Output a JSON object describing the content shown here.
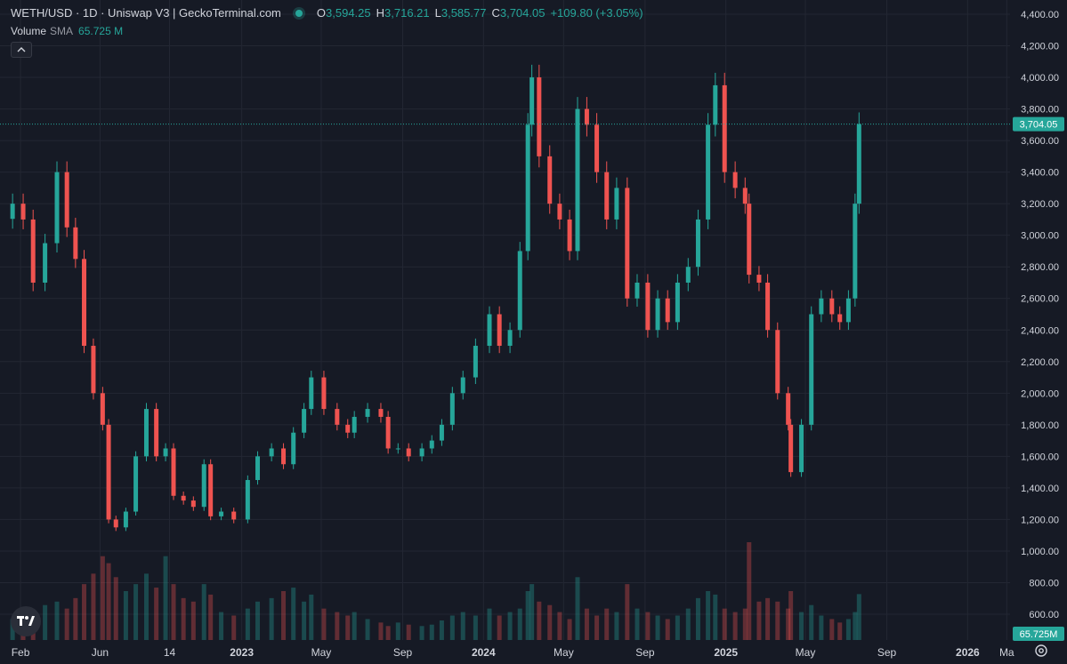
{
  "header": {
    "title": "WETH/USD · 1D · Uniswap V3 | GeckoTerminal.com",
    "ohlc": [
      {
        "key": "O",
        "value": "3,594.25"
      },
      {
        "key": "H",
        "value": "3,716.21"
      },
      {
        "key": "L",
        "value": "3,585.77"
      },
      {
        "key": "C",
        "value": "3,704.05"
      }
    ],
    "change": "+109.80 (+3.05%)"
  },
  "volume_legend": {
    "label": "Volume",
    "sub": "SMA",
    "value": "65.725 M"
  },
  "colors": {
    "background": "#161a25",
    "grid": "#232733",
    "up": "#26a69a",
    "down": "#ef5350",
    "text": "#d1d4dc",
    "muted": "#9598a1"
  },
  "icons": {
    "collapse": "chevron-up-icon",
    "logo": "tradingview-logo-icon",
    "settings": "gear-icon"
  },
  "chart_data": {
    "type": "candlestick",
    "title": "WETH/USD · 1D · Uniswap V3 | GeckoTerminal.com",
    "ylim": [
      500,
      4450
    ],
    "y_ticks": [
      600,
      800,
      1000,
      1200,
      1400,
      1600,
      1800,
      2000,
      2200,
      2400,
      2600,
      2800,
      3000,
      3200,
      3400,
      3600,
      3800,
      4000,
      4200,
      4400
    ],
    "y_tick_labels": [
      "600.00",
      "800.00",
      "1,000.00",
      "1,200.00",
      "1,400.00",
      "1,600.00",
      "1,800.00",
      "2,000.00",
      "2,200.00",
      "2,400.00",
      "2,600.00",
      "2,800.00",
      "3,000.00",
      "3,200.00",
      "3,400.00",
      "3,600.00",
      "3,800.00",
      "4,000.00",
      "4,200.00",
      "4,400.00"
    ],
    "x_tick_labels": [
      "Feb",
      "Jun",
      "14",
      "2023",
      "May",
      "Sep",
      "2024",
      "May",
      "Sep",
      "2025",
      "May",
      "Sep",
      "2026",
      "Ma"
    ],
    "x_tick_dates": [
      "2022-02-01",
      "2022-06-01",
      "2022-09-14",
      "2023-01-01",
      "2023-05-01",
      "2023-09-01",
      "2024-01-01",
      "2024-05-01",
      "2024-09-01",
      "2025-01-01",
      "2025-05-01",
      "2025-09-01",
      "2026-01-01",
      "2026-03-01"
    ],
    "x_tick_bold": [
      false,
      false,
      false,
      true,
      false,
      false,
      true,
      false,
      false,
      true,
      false,
      false,
      true,
      false
    ],
    "x_range": [
      "2022-01-01",
      "2026-03-06"
    ],
    "series": {
      "dates": [
        "2022-01-20",
        "2022-02-05",
        "2022-02-20",
        "2022-03-10",
        "2022-03-28",
        "2022-04-12",
        "2022-04-25",
        "2022-05-08",
        "2022-05-22",
        "2022-06-05",
        "2022-06-14",
        "2022-06-25",
        "2022-07-10",
        "2022-07-25",
        "2022-08-10",
        "2022-08-25",
        "2022-09-08",
        "2022-09-20",
        "2022-10-05",
        "2022-10-20",
        "2022-11-05",
        "2022-11-15",
        "2022-12-01",
        "2022-12-20",
        "2023-01-10",
        "2023-01-25",
        "2023-02-15",
        "2023-03-05",
        "2023-03-20",
        "2023-04-05",
        "2023-04-16",
        "2023-05-05",
        "2023-05-25",
        "2023-06-10",
        "2023-06-20",
        "2023-07-10",
        "2023-07-30",
        "2023-08-10",
        "2023-08-25",
        "2023-09-10",
        "2023-09-30",
        "2023-10-15",
        "2023-10-30",
        "2023-11-15",
        "2023-12-01",
        "2023-12-20",
        "2024-01-10",
        "2024-01-25",
        "2024-02-10",
        "2024-02-25",
        "2024-03-08",
        "2024-03-14",
        "2024-03-25",
        "2024-04-10",
        "2024-04-25",
        "2024-05-10",
        "2024-05-22",
        "2024-06-05",
        "2024-06-20",
        "2024-07-05",
        "2024-07-20",
        "2024-08-05",
        "2024-08-20",
        "2024-09-05",
        "2024-09-20",
        "2024-10-05",
        "2024-10-20",
        "2024-11-05",
        "2024-11-20",
        "2024-12-05",
        "2024-12-16",
        "2024-12-30",
        "2025-01-15",
        "2025-01-30",
        "2025-02-05",
        "2025-02-20",
        "2025-03-05",
        "2025-03-20",
        "2025-04-05",
        "2025-04-09",
        "2025-04-25",
        "2025-05-10",
        "2025-05-25",
        "2025-06-10",
        "2025-06-22",
        "2025-07-05",
        "2025-07-15",
        "2025-07-21"
      ],
      "close": [
        3200,
        3100,
        2700,
        2950,
        3400,
        3050,
        2850,
        2300,
        2000,
        1800,
        1200,
        1150,
        1250,
        1600,
        1900,
        1600,
        1650,
        1350,
        1320,
        1280,
        1550,
        1220,
        1250,
        1200,
        1450,
        1600,
        1650,
        1550,
        1750,
        1900,
        2100,
        1900,
        1800,
        1750,
        1850,
        1900,
        1850,
        1650,
        1650,
        1600,
        1650,
        1700,
        1800,
        2000,
        2100,
        2300,
        2500,
        2300,
        2400,
        2900,
        3700,
        4000,
        3500,
        3200,
        3100,
        2900,
        3800,
        3700,
        3400,
        3100,
        3300,
        2600,
        2700,
        2400,
        2600,
        2450,
        2700,
        2800,
        3100,
        3700,
        3950,
        3400,
        3300,
        3200,
        2750,
        2700,
        2400,
        2000,
        1800,
        1500,
        1800,
        2500,
        2600,
        2500,
        2450,
        2600,
        3200,
        3704.05
      ],
      "volume": [
        30,
        35,
        40,
        50,
        55,
        45,
        60,
        80,
        95,
        120,
        110,
        90,
        70,
        80,
        95,
        75,
        120,
        80,
        60,
        55,
        80,
        65,
        40,
        35,
        45,
        55,
        60,
        70,
        75,
        55,
        65,
        45,
        40,
        35,
        40,
        30,
        25,
        20,
        25,
        22,
        20,
        22,
        28,
        35,
        40,
        35,
        45,
        35,
        40,
        45,
        70,
        80,
        55,
        50,
        40,
        30,
        90,
        45,
        35,
        45,
        40,
        80,
        45,
        40,
        35,
        30,
        35,
        45,
        60,
        70,
        65,
        45,
        40,
        45,
        140,
        55,
        60,
        55,
        45,
        70,
        40,
        50,
        35,
        30,
        25,
        30,
        40,
        65.725
      ]
    },
    "current_price_label": "3,704.05",
    "current_volume_label": "65.725M",
    "grid": true
  }
}
